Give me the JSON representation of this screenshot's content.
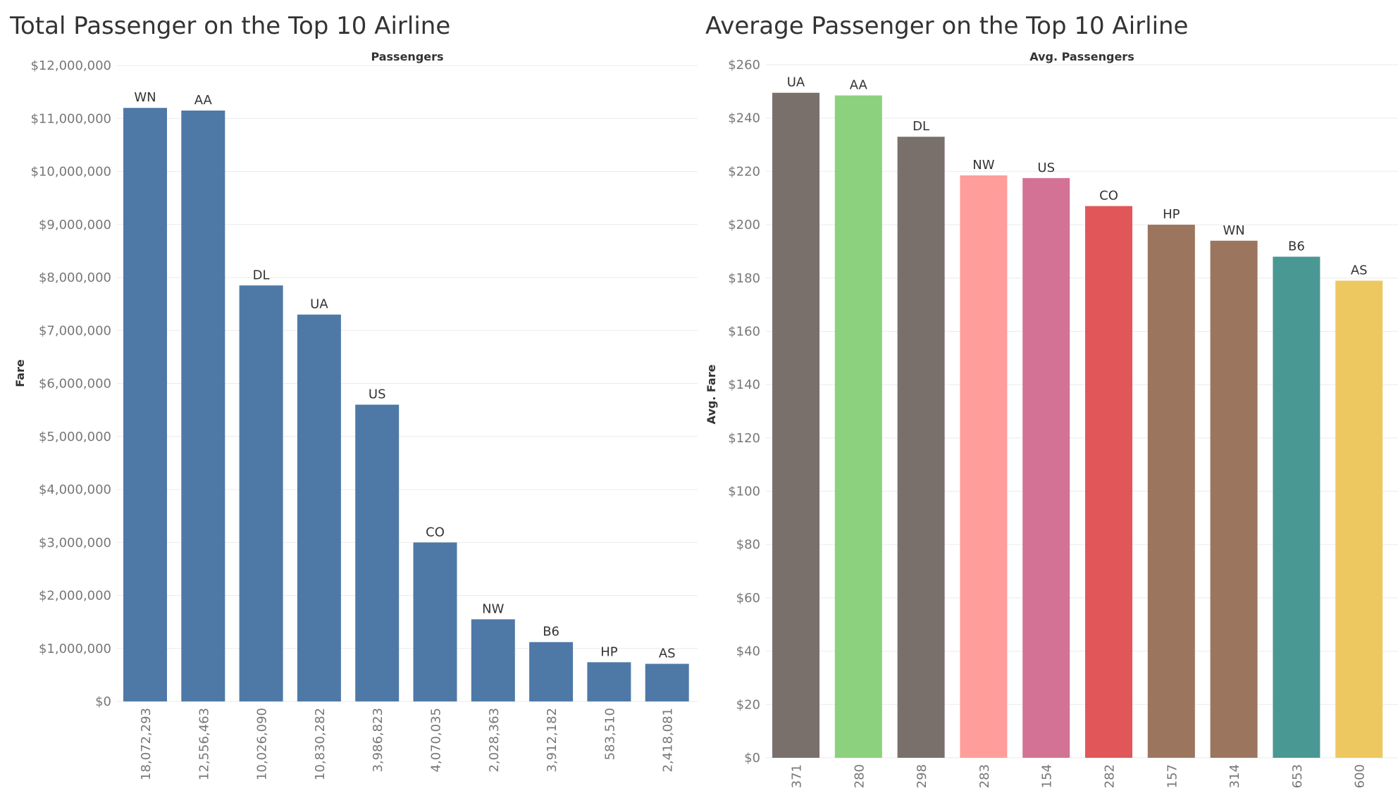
{
  "chart_data": [
    {
      "type": "bar",
      "title": "Total Passenger on the Top 10 Airline",
      "subtitle": "Passengers",
      "ylabel": "Fare",
      "ylim": [
        0,
        12000000
      ],
      "yticks": [
        "$0",
        "$1,000,000",
        "$2,000,000",
        "$3,000,000",
        "$4,000,000",
        "$5,000,000",
        "$6,000,000",
        "$7,000,000",
        "$8,000,000",
        "$9,000,000",
        "$10,000,000",
        "$11,000,000",
        "$12,000,000"
      ],
      "grid": true,
      "bar_color": "#4e79a7",
      "categories": [
        "18,072,293",
        "12,556,463",
        "10,026,090",
        "10,830,282",
        "3,986,823",
        "4,070,035",
        "2,028,363",
        "3,912,182",
        "583,510",
        "2,418,081"
      ],
      "labels": [
        "WN",
        "AA",
        "DL",
        "UA",
        "US",
        "CO",
        "NW",
        "B6",
        "HP",
        "AS"
      ],
      "values": [
        11200000,
        11150000,
        7850000,
        7300000,
        5600000,
        3000000,
        1550000,
        1120000,
        740000,
        710000
      ]
    },
    {
      "type": "bar",
      "title": "Average Passenger on the Top 10 Airline",
      "subtitle": "Avg. Passengers",
      "ylabel": "Avg. Fare",
      "ylim": [
        0,
        260
      ],
      "yticks": [
        "$0",
        "$20",
        "$40",
        "$60",
        "$80",
        "$100",
        "$120",
        "$140",
        "$160",
        "$180",
        "$200",
        "$220",
        "$240",
        "$260"
      ],
      "grid": true,
      "categories": [
        "371",
        "280",
        "298",
        "283",
        "154",
        "282",
        "157",
        "314",
        "653",
        "600"
      ],
      "labels": [
        "UA",
        "AA",
        "DL",
        "NW",
        "US",
        "CO",
        "HP",
        "WN",
        "B6",
        "AS"
      ],
      "values": [
        249.5,
        248.5,
        233,
        218.5,
        217.5,
        207,
        200,
        194,
        188,
        179
      ],
      "colors": [
        "#796f6b",
        "#8cd17d",
        "#796f6b",
        "#ff9d9a",
        "#d37295",
        "#e15759",
        "#9c755f",
        "#9c755f",
        "#499894",
        "#edc860"
      ]
    }
  ]
}
